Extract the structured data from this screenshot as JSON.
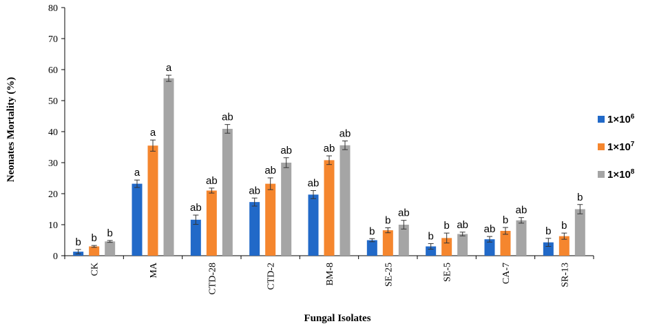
{
  "chart_data": {
    "type": "bar",
    "title": "",
    "xlabel": "Fungal Isolates",
    "ylabel": "Neonates Mortality (%)",
    "ylim": [
      0,
      80
    ],
    "yticks": [
      0,
      10,
      20,
      30,
      40,
      50,
      60,
      70,
      80
    ],
    "grid": false,
    "legend_position": "right",
    "categories": [
      "CK",
      "MA",
      "CTD-28",
      "CTD-2",
      "BM-8",
      "SE-25",
      "SE-5",
      "CA-7",
      "SR-13"
    ],
    "series": [
      {
        "name": "1×10⁶",
        "name_base": "1×10",
        "name_exp": "6",
        "color": "#2169c8",
        "values": [
          1.3,
          23.2,
          11.6,
          17.3,
          19.7,
          5.0,
          3.0,
          5.3,
          4.3
        ],
        "errors": [
          0.7,
          1.2,
          1.5,
          1.3,
          1.3,
          0.5,
          0.9,
          0.9,
          1.3
        ],
        "sig": [
          "b",
          "a",
          "ab",
          "ab",
          "ab",
          "b",
          "b",
          "ab",
          "b"
        ]
      },
      {
        "name": "1×10⁷",
        "name_base": "1×10",
        "name_exp": "7",
        "color": "#f5862e",
        "values": [
          3.0,
          35.5,
          21.0,
          23.2,
          30.8,
          8.2,
          5.7,
          8.0,
          6.3
        ],
        "errors": [
          0.3,
          1.8,
          0.8,
          1.9,
          1.4,
          0.8,
          1.6,
          1.1,
          1.0
        ],
        "sig": [
          "b",
          "a",
          "ab",
          "ab",
          "ab",
          "b",
          "b",
          "b",
          "b"
        ]
      },
      {
        "name": "1×10⁸",
        "name_base": "1×10",
        "name_exp": "8",
        "color": "#a5a5a5",
        "values": [
          4.6,
          57.2,
          40.9,
          30.0,
          35.6,
          10.0,
          7.0,
          11.4,
          15.0
        ],
        "errors": [
          0.3,
          1.0,
          1.4,
          1.6,
          1.4,
          1.4,
          0.6,
          0.9,
          1.5
        ],
        "sig": [
          "b",
          "a",
          "ab",
          "ab",
          "ab",
          "ab",
          "ab",
          "ab",
          "b"
        ]
      }
    ]
  }
}
